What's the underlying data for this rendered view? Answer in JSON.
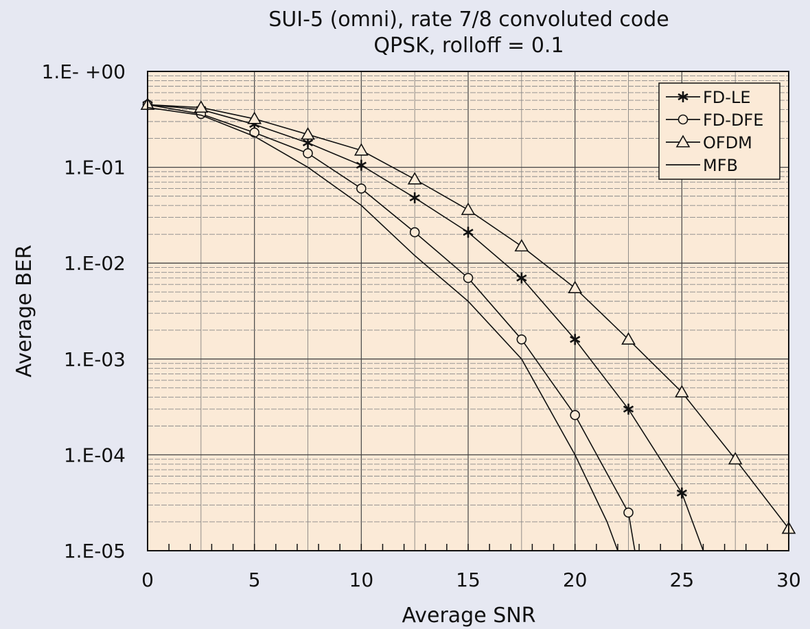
{
  "chart_data": {
    "type": "line",
    "title": "SUI-5 (omni), rate 7/8 convoluted code",
    "subtitle": "QPSK, rolloff = 0.1",
    "xlabel": "Average SNR",
    "ylabel": "Average BER",
    "xlim": [
      0,
      30
    ],
    "ylim": [
      1e-05,
      1
    ],
    "yscale": "log",
    "xticks": [
      0,
      5,
      10,
      15,
      20,
      25,
      30
    ],
    "yticks": [
      1,
      0.1,
      0.01,
      0.001,
      0.0001,
      1e-05
    ],
    "ytick_labels": [
      "1.E- +00",
      "1.E-01",
      "1.E-02",
      "1.E-03",
      "1.E-04",
      "1.E-05"
    ],
    "grid": true,
    "legend_position": "top-right",
    "series": [
      {
        "name": "FD-LE",
        "marker": "asterisk",
        "x": [
          0,
          2.5,
          5,
          7.5,
          10,
          12.5,
          15,
          17.5,
          20,
          22.5,
          25,
          26
        ],
        "y": [
          0.45,
          0.4,
          0.28,
          0.18,
          0.105,
          0.048,
          0.021,
          0.007,
          0.0016,
          0.0003,
          4e-05,
          1e-05
        ]
      },
      {
        "name": "FD-DFE",
        "marker": "circle",
        "x": [
          0,
          2.5,
          5,
          7.5,
          10,
          12.5,
          15,
          17.5,
          20,
          22.5,
          22.8
        ],
        "y": [
          0.45,
          0.36,
          0.23,
          0.14,
          0.06,
          0.021,
          0.007,
          0.0016,
          0.00026,
          2.5e-05,
          1e-05
        ]
      },
      {
        "name": "OFDM",
        "marker": "triangle",
        "x": [
          0,
          2.5,
          5,
          7.5,
          10,
          12.5,
          15,
          17.5,
          20,
          22.5,
          25,
          27.5,
          30
        ],
        "y": [
          0.45,
          0.42,
          0.32,
          0.22,
          0.15,
          0.075,
          0.036,
          0.015,
          0.0055,
          0.0016,
          0.00045,
          9e-05,
          1.7e-05
        ]
      },
      {
        "name": "MFB",
        "marker": "none",
        "x": [
          0,
          2.5,
          5,
          7.5,
          10,
          12.5,
          15,
          17.5,
          20,
          21.5,
          22
        ],
        "y": [
          0.42,
          0.35,
          0.21,
          0.1,
          0.04,
          0.012,
          0.004,
          0.001,
          0.0001,
          2e-05,
          1e-05
        ]
      }
    ]
  }
}
